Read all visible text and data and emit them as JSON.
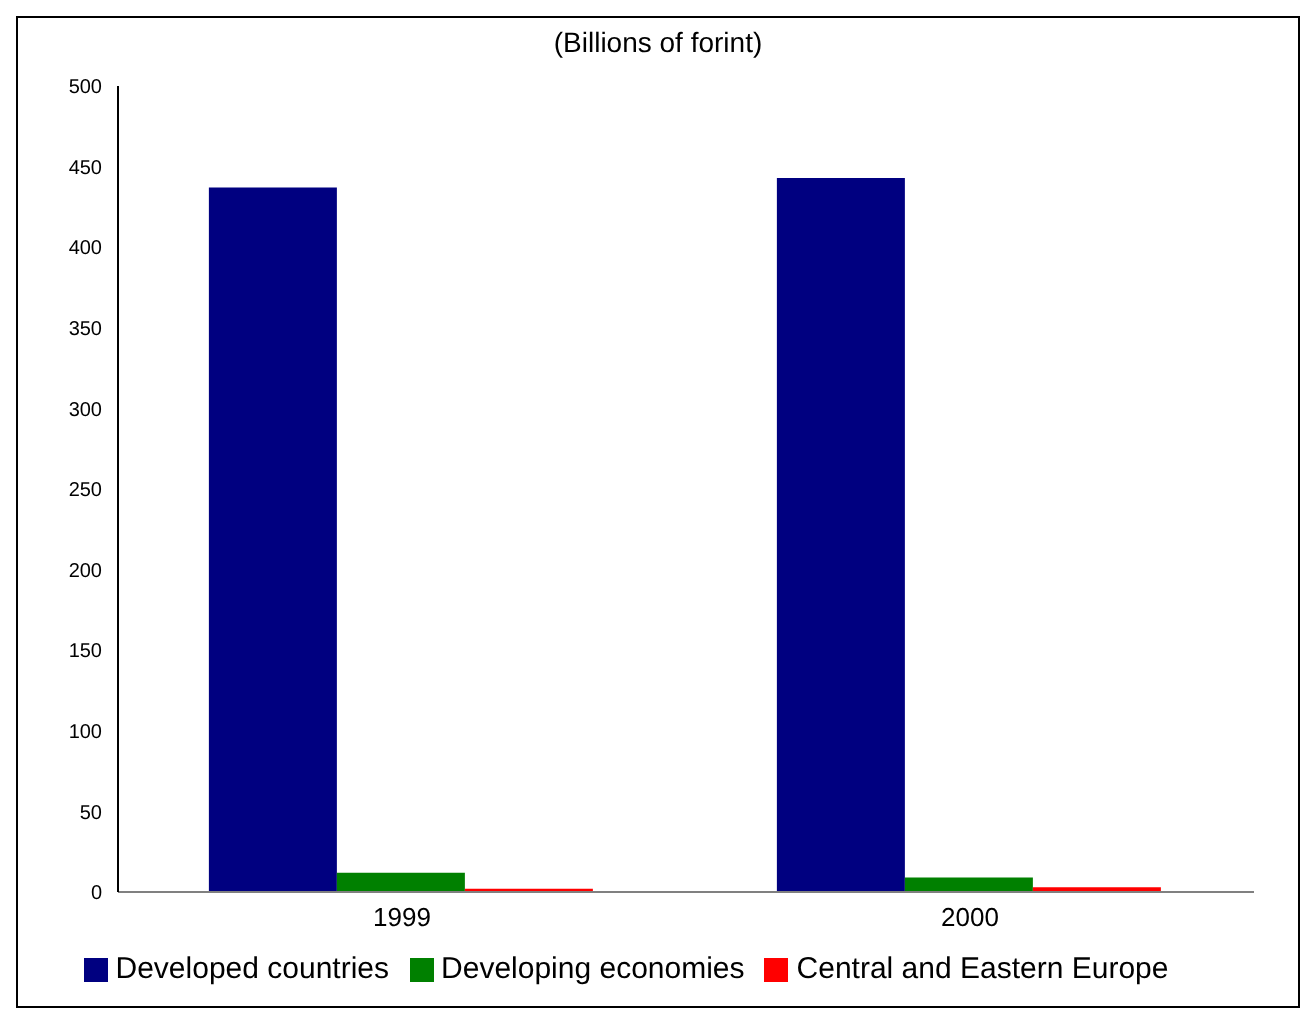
{
  "chart_data": {
    "type": "bar",
    "title": "(Billions of forint)",
    "categories": [
      "1999",
      "2000"
    ],
    "series": [
      {
        "name": "Developed countries",
        "color": "#000080",
        "values": [
          437,
          443
        ]
      },
      {
        "name": "Developing economies",
        "color": "#008000",
        "values": [
          12,
          9
        ]
      },
      {
        "name": "Central and Eastern Europe",
        "color": "#ff0000",
        "values": [
          2,
          3
        ]
      }
    ],
    "ylim": [
      0,
      500
    ],
    "yticks": [
      0,
      50,
      100,
      150,
      200,
      250,
      300,
      350,
      400,
      450,
      500
    ],
    "grid": false,
    "legend": "bottom"
  }
}
